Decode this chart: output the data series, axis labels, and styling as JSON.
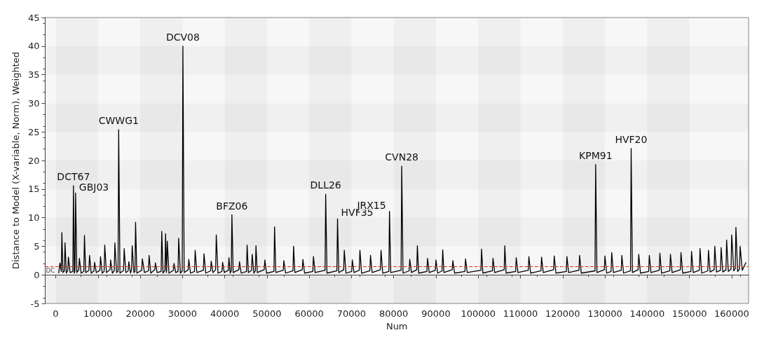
{
  "chart_data": {
    "type": "line",
    "xlabel": "Num",
    "ylabel": "Distance to Model (X-variable, Norm), Weighted",
    "xlim": [
      -2500,
      164000
    ],
    "xticks": [
      0,
      10000,
      20000,
      30000,
      40000,
      50000,
      60000,
      70000,
      80000,
      90000,
      100000,
      110000,
      120000,
      130000,
      140000,
      150000,
      160000
    ],
    "ylim": [
      -5,
      45
    ],
    "yticks": [
      -5,
      0,
      5,
      10,
      15,
      20,
      25,
      30,
      35,
      40,
      45
    ],
    "grid": true,
    "marker": "none",
    "line_style": "solid",
    "series": [
      {
        "color": "#000000",
        "x": [
          700,
          1000,
          1310,
          1460,
          1700,
          2050,
          2200,
          2500,
          2850,
          3000,
          3400,
          4050,
          4200,
          4400,
          4550,
          4700,
          5000,
          5450,
          5600,
          6000,
          6650,
          6800,
          7100,
          7850,
          8000,
          8400,
          9050,
          9200,
          9600,
          10450,
          10600,
          11000,
          11450,
          11600,
          12000,
          12850,
          13000,
          13400,
          13850,
          14000,
          14400,
          14750,
          14900,
          15200,
          16050,
          16200,
          16600,
          17150,
          17300,
          17700,
          17950,
          18100,
          18500,
          18750,
          18900,
          19200,
          20350,
          20500,
          21000,
          21950,
          22100,
          22500,
          23450,
          23600,
          24000,
          24950,
          25100,
          25400,
          25850,
          26000,
          26200,
          26250,
          26400,
          26800,
          27850,
          28000,
          28400,
          28950,
          29100,
          29500,
          29950,
          30100,
          30400,
          31350,
          31500,
          31900,
          32850,
          33000,
          33400,
          34950,
          35100,
          35500,
          36650,
          36800,
          37200,
          37850,
          38000,
          38400,
          39350,
          39500,
          39900,
          40850,
          41000,
          41300,
          41550,
          41700,
          42000,
          43350,
          43500,
          43900,
          45150,
          45300,
          45600,
          46350,
          46500,
          46900,
          47250,
          47400,
          47700,
          49350,
          49500,
          49900,
          51650,
          51800,
          52100,
          53850,
          54000,
          54400,
          56150,
          56300,
          56600,
          58350,
          58500,
          58900,
          60850,
          61000,
          61400,
          63750,
          63900,
          64200,
          66550,
          66700,
          67000,
          68150,
          68300,
          68700,
          70050,
          70200,
          70600,
          71850,
          72000,
          72400,
          74350,
          74500,
          74900,
          76850,
          77000,
          77400,
          78850,
          79000,
          79300,
          81750,
          81900,
          82200,
          83650,
          83800,
          84200,
          85450,
          85600,
          85900,
          87850,
          88000,
          88400,
          89850,
          90000,
          90400,
          91450,
          91600,
          91900,
          93850,
          94000,
          94400,
          96850,
          97000,
          97400,
          100650,
          100800,
          101100,
          103350,
          103500,
          103900,
          106150,
          106300,
          106600,
          108850,
          109000,
          109400,
          111850,
          112000,
          112400,
          114850,
          115000,
          115400,
          117850,
          118000,
          118400,
          120850,
          121000,
          121400,
          123850,
          124000,
          124400,
          127650,
          127800,
          128100,
          129850,
          130000,
          130400,
          131450,
          131600,
          132000,
          133850,
          134000,
          134400,
          136050,
          136200,
          136500,
          137850,
          138000,
          138400,
          140350,
          140500,
          140900,
          142850,
          143000,
          143400,
          145350,
          145500,
          145900,
          147850,
          148000,
          148400,
          150350,
          150500,
          150900,
          152350,
          152500,
          152900,
          154350,
          154500,
          154900,
          155850,
          156000,
          156400,
          157350,
          157500,
          157900,
          158650,
          158800,
          159200,
          159850,
          160000,
          160500,
          160850,
          161000,
          161400,
          161850,
          162000,
          162500,
          163400
        ],
        "values": [
          0.3,
          2.1,
          0.6,
          7.4,
          0.4,
          0.7,
          5.6,
          0.3,
          0.8,
          3.1,
          0.4,
          0.6,
          15.6,
          0.3,
          0.7,
          14.3,
          0.4,
          0.9,
          2.9,
          0.3,
          0.6,
          6.9,
          0.4,
          0.8,
          3.4,
          0.3,
          0.7,
          2.2,
          0.4,
          0.8,
          3.2,
          0.3,
          0.6,
          5.2,
          0.4,
          0.9,
          2.6,
          0.3,
          0.7,
          5.6,
          0.4,
          0.6,
          25.4,
          0.3,
          0.8,
          4.6,
          0.4,
          0.7,
          2.3,
          0.3,
          0.9,
          5.1,
          0.4,
          0.6,
          9.2,
          0.3,
          0.8,
          2.8,
          0.4,
          0.7,
          3.4,
          0.3,
          0.9,
          2.1,
          0.4,
          0.6,
          7.6,
          0.3,
          0.8,
          7.2,
          0.4,
          0.7,
          5.9,
          0.3,
          0.8,
          2.0,
          0.4,
          0.6,
          6.4,
          0.3,
          0.7,
          40,
          0.4,
          0.9,
          2.7,
          0.3,
          0.6,
          4.3,
          0.4,
          0.8,
          3.7,
          0.3,
          0.7,
          2.4,
          0.4,
          0.9,
          7.0,
          0.3,
          0.6,
          2.2,
          0.4,
          0.8,
          3.0,
          0.3,
          0.7,
          10.5,
          0.4,
          0.9,
          2.3,
          0.3,
          0.6,
          5.2,
          0.4,
          0.8,
          3.6,
          0.3,
          0.7,
          5.1,
          0.4,
          0.9,
          2.6,
          0.3,
          0.6,
          8.4,
          0.4,
          0.8,
          2.5,
          0.3,
          0.7,
          5.0,
          0.4,
          0.9,
          2.7,
          0.3,
          0.6,
          3.2,
          0.4,
          0.8,
          14.1,
          0.3,
          0.7,
          9.8,
          0.4,
          0.9,
          4.3,
          0.3,
          0.6,
          2.6,
          0.4,
          0.8,
          4.3,
          0.3,
          0.7,
          3.4,
          0.4,
          0.9,
          4.3,
          0.3,
          0.6,
          11.1,
          0.4,
          0.8,
          19.0,
          0.3,
          0.7,
          2.7,
          0.4,
          0.9,
          5.1,
          0.3,
          0.6,
          2.9,
          0.4,
          0.8,
          2.6,
          0.3,
          0.7,
          4.4,
          0.4,
          0.9,
          2.5,
          0.3,
          0.6,
          2.8,
          0.4,
          0.8,
          4.5,
          0.3,
          0.7,
          2.9,
          0.4,
          0.9,
          5.1,
          0.3,
          0.6,
          3.0,
          0.4,
          0.8,
          3.2,
          0.3,
          0.7,
          3.1,
          0.4,
          0.9,
          3.3,
          0.3,
          0.6,
          3.2,
          0.4,
          0.8,
          3.4,
          0.3,
          0.7,
          19.3,
          0.4,
          0.9,
          3.3,
          0.3,
          0.6,
          3.9,
          0.4,
          0.8,
          3.4,
          0.3,
          0.7,
          22.1,
          0.4,
          0.9,
          3.6,
          0.3,
          0.6,
          3.4,
          0.4,
          0.8,
          3.8,
          0.3,
          0.7,
          3.6,
          0.4,
          0.9,
          3.9,
          0.3,
          0.6,
          4.1,
          0.4,
          0.8,
          4.6,
          0.3,
          0.7,
          4.3,
          0.5,
          0.9,
          5.0,
          0.5,
          0.8,
          4.8,
          0.5,
          0.9,
          6.1,
          0.6,
          1.0,
          7.0,
          0.7,
          1.1,
          8.3,
          0.6,
          1.0,
          5.0,
          0.8,
          2.2
        ]
      }
    ],
    "ref_lines": [
      {
        "axis": "y",
        "value": 1.45,
        "label": "DC",
        "color": "#e03020",
        "line_style": "dashed"
      }
    ],
    "annotations": [
      {
        "text": "DCT67",
        "x": 4200,
        "y": 15.6
      },
      {
        "text": "GBJ03",
        "x": 4700,
        "y": 14.3
      },
      {
        "text": "CWWG1",
        "x": 14900,
        "y": 25.4
      },
      {
        "text": "DCV08",
        "x": 30100,
        "y": 40
      },
      {
        "text": "BFZ06",
        "x": 41700,
        "y": 10.5
      },
      {
        "text": "DLL26",
        "x": 63900,
        "y": 14.1
      },
      {
        "text": "HVF35",
        "x": 66700,
        "y": 9.8
      },
      {
        "text": "JRX15",
        "x": 79000,
        "y": 11.1
      },
      {
        "text": "CVN28",
        "x": 81900,
        "y": 19.0
      },
      {
        "text": "KPM91",
        "x": 127800,
        "y": 19.3
      },
      {
        "text": "HVF20",
        "x": 136200,
        "y": 22.1
      }
    ]
  }
}
